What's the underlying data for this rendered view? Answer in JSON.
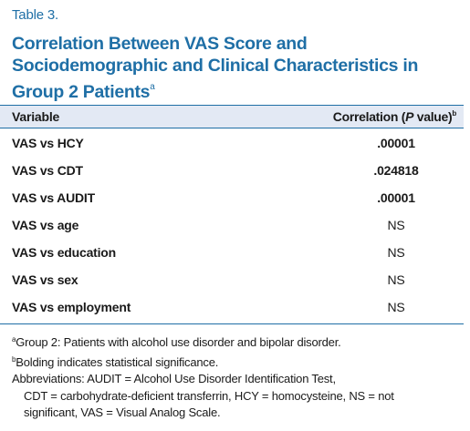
{
  "table_label": "Table 3.",
  "title": {
    "text": "Correlation Between VAS Score and Sociodemographic and Clinical Characteristics in Group 2 Patients",
    "footnote_mark": "a"
  },
  "columns": {
    "variable": "Variable",
    "correlation_prefix": "Correlation (",
    "correlation_p": "P",
    "correlation_suffix": " value)",
    "correlation_footnote_mark": "b"
  },
  "rows": [
    {
      "variable": "VAS vs HCY",
      "value": ".00001",
      "significant": true
    },
    {
      "variable": "VAS vs CDT",
      "value": ".024818",
      "significant": true
    },
    {
      "variable": "VAS vs AUDIT",
      "value": ".00001",
      "significant": true
    },
    {
      "variable": "VAS vs age",
      "value": "NS",
      "significant": false
    },
    {
      "variable": "VAS vs education",
      "value": "NS",
      "significant": false
    },
    {
      "variable": "VAS vs sex",
      "value": "NS",
      "significant": false
    },
    {
      "variable": "VAS vs employment",
      "value": "NS",
      "significant": false
    }
  ],
  "footnotes": {
    "a_mark": "a",
    "a_text": "Group 2: Patients with alcohol use disorder and bipolar disorder.",
    "b_mark": "b",
    "b_text": "Bolding indicates statistical significance.",
    "abbreviations_line1": "Abbreviations: AUDIT = Alcohol Use Disorder Identification Test,",
    "abbreviations_line2": "CDT = carbohydrate-deficient transferrin, HCY = homocysteine, NS = not",
    "abbreviations_line3": "significant, VAS = Visual Analog Scale."
  },
  "colors": {
    "accent": "#1f6fa6",
    "header_background": "#e3e9f4"
  }
}
